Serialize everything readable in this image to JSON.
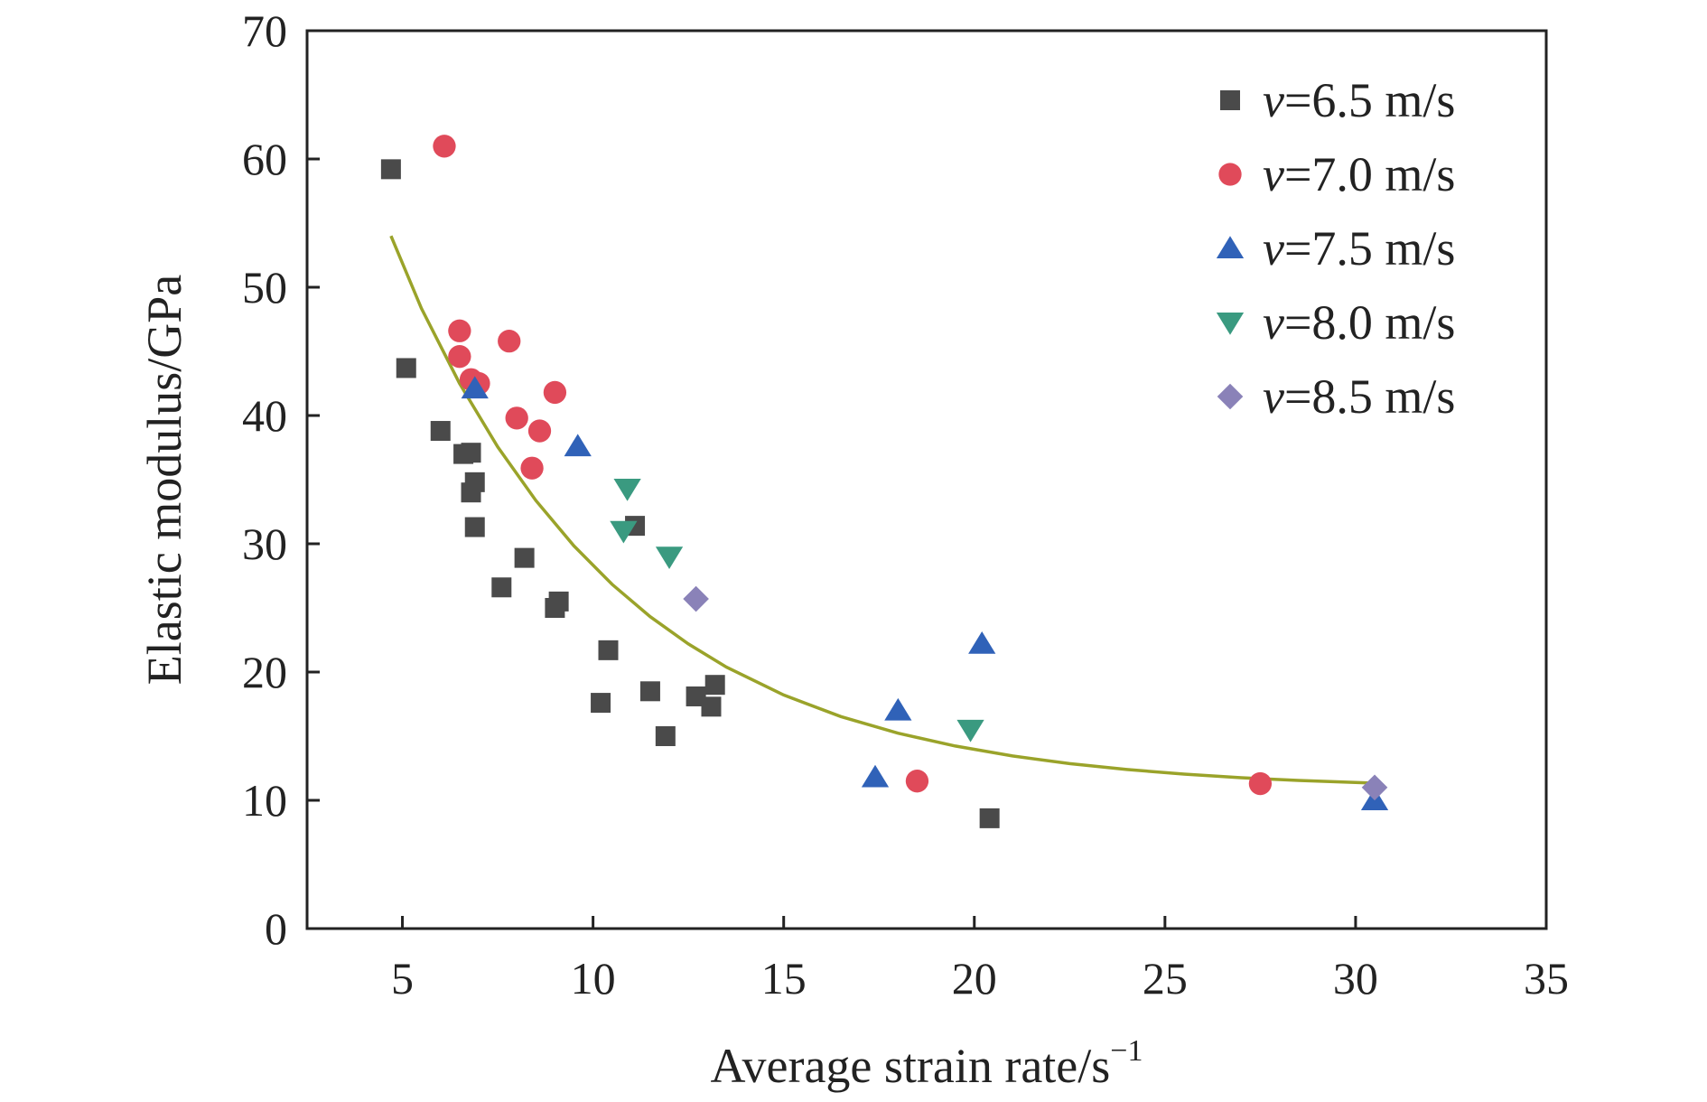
{
  "chart_data": {
    "type": "scatter",
    "title": "",
    "xlabel": "Average strain rate/s",
    "xlabel_sup": "−1",
    "ylabel": "Elastic modulus/GPa",
    "xlim": [
      2.5,
      35
    ],
    "ylim": [
      0,
      70
    ],
    "xticks": [
      5,
      10,
      15,
      20,
      25,
      30,
      35
    ],
    "yticks": [
      0,
      10,
      20,
      30,
      40,
      50,
      60,
      70
    ],
    "xtick_labels": [
      "5",
      "10",
      "15",
      "20",
      "25",
      "30",
      "35"
    ],
    "ytick_labels": [
      "0",
      "10",
      "20",
      "30",
      "40",
      "50",
      "60",
      "70"
    ],
    "grid": false,
    "legend_position": "top-right",
    "series": [
      {
        "name": "v=6.5 m/s",
        "legend_var": "v",
        "legend_rest": "=6.5 m/s",
        "marker": "square",
        "color": "#4a4a4a",
        "points": [
          [
            4.7,
            59.2
          ],
          [
            5.1,
            43.7
          ],
          [
            6.0,
            38.8
          ],
          [
            6.6,
            37.0
          ],
          [
            6.8,
            37.1
          ],
          [
            6.8,
            34.0
          ],
          [
            6.9,
            34.8
          ],
          [
            6.9,
            31.3
          ],
          [
            7.6,
            26.6
          ],
          [
            8.2,
            28.9
          ],
          [
            9.0,
            25.0
          ],
          [
            9.1,
            25.5
          ],
          [
            10.2,
            17.6
          ],
          [
            10.4,
            21.7
          ],
          [
            11.1,
            31.4
          ],
          [
            11.5,
            18.5
          ],
          [
            11.9,
            15.0
          ],
          [
            12.7,
            18.1
          ],
          [
            13.1,
            17.3
          ],
          [
            13.2,
            19.0
          ],
          [
            20.4,
            8.6
          ]
        ]
      },
      {
        "name": "v=7.0 m/s",
        "legend_var": "v",
        "legend_rest": "=7.0 m/s",
        "marker": "circle",
        "color": "#e04a5a",
        "points": [
          [
            6.1,
            61.0
          ],
          [
            6.5,
            46.6
          ],
          [
            6.5,
            44.6
          ],
          [
            6.8,
            42.8
          ],
          [
            7.0,
            42.5
          ],
          [
            7.8,
            45.8
          ],
          [
            8.0,
            39.8
          ],
          [
            8.4,
            35.9
          ],
          [
            8.6,
            38.8
          ],
          [
            9.0,
            41.8
          ],
          [
            18.5,
            11.5
          ],
          [
            27.5,
            11.3
          ]
        ]
      },
      {
        "name": "v=7.5 m/s",
        "legend_var": "v",
        "legend_rest": "=7.5 m/s",
        "marker": "triangle-up",
        "color": "#3062b8",
        "points": [
          [
            6.9,
            42.1
          ],
          [
            9.6,
            37.6
          ],
          [
            17.4,
            11.8
          ],
          [
            18.0,
            17.0
          ],
          [
            20.2,
            22.2
          ],
          [
            30.5,
            10.0
          ]
        ]
      },
      {
        "name": "v=8.0 m/s",
        "legend_var": "v",
        "legend_rest": "=8.0 m/s",
        "marker": "triangle-down",
        "color": "#3a9a80",
        "points": [
          [
            10.8,
            31.0
          ],
          [
            10.9,
            34.3
          ],
          [
            12.0,
            29.0
          ],
          [
            19.9,
            15.5
          ]
        ]
      },
      {
        "name": "v=8.5 m/s",
        "legend_var": "v",
        "legend_rest": "=8.5 m/s",
        "marker": "diamond",
        "color": "#8a82b8",
        "points": [
          [
            12.7,
            25.7
          ],
          [
            30.5,
            11.0
          ]
        ]
      }
    ],
    "fit_curve": {
      "type": "exponential decay",
      "color": "#9aa32a",
      "points": [
        [
          4.7,
          54.0
        ],
        [
          5.5,
          48.35
        ],
        [
          6.5,
          42.49
        ],
        [
          7.5,
          37.55
        ],
        [
          8.5,
          33.37
        ],
        [
          9.5,
          29.83
        ],
        [
          10.5,
          26.84
        ],
        [
          11.5,
          24.32
        ],
        [
          12.5,
          22.19
        ],
        [
          13.5,
          20.38
        ],
        [
          15.0,
          18.21
        ],
        [
          16.5,
          16.53
        ],
        [
          18.0,
          15.23
        ],
        [
          19.5,
          14.23
        ],
        [
          21.0,
          13.46
        ],
        [
          22.5,
          12.86
        ],
        [
          24.0,
          12.4
        ],
        [
          25.5,
          12.04
        ],
        [
          27.0,
          11.76
        ],
        [
          28.5,
          11.55
        ],
        [
          30.5,
          11.34
        ]
      ]
    }
  }
}
